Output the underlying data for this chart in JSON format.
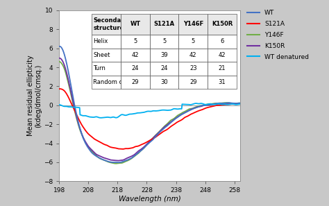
{
  "title": "",
  "xlabel": "Wavelength (nm)",
  "ylabel": "Mean residual ellipticity\n(kdeg/dmol/cmsq.)",
  "xlim": [
    198,
    260
  ],
  "ylim": [
    -8,
    10
  ],
  "xticks": [
    198,
    208,
    218,
    228,
    238,
    248,
    258
  ],
  "yticks": [
    -8,
    -6,
    -4,
    -2,
    0,
    2,
    4,
    6,
    8,
    10
  ],
  "fig_bg_color": "#c8c8c8",
  "plot_bg_color": "#ffffff",
  "lines": {
    "WT": {
      "color": "#4472c4",
      "lw": 1.3
    },
    "S121A": {
      "color": "#ff0000",
      "lw": 1.3
    },
    "Y146F": {
      "color": "#70ad47",
      "lw": 1.3
    },
    "K150R": {
      "color": "#7030a0",
      "lw": 1.3
    },
    "WT_denatured": {
      "color": "#00b0f0",
      "lw": 1.3
    }
  },
  "legend_labels": [
    "WT",
    "S121A",
    "Y146F",
    "K150R",
    "WT denatured"
  ],
  "table_col_labels": [
    "Secondary\nstructure",
    "WT",
    "S121A",
    "Y146F",
    "K150R"
  ],
  "table_rows": [
    [
      "Helix",
      "5",
      "5",
      "5",
      "6"
    ],
    [
      "Sheet",
      "42",
      "39",
      "42",
      "42"
    ],
    [
      "Turn",
      "24",
      "24",
      "23",
      "21"
    ],
    [
      "Random coil",
      "29",
      "30",
      "29",
      "31"
    ]
  ]
}
